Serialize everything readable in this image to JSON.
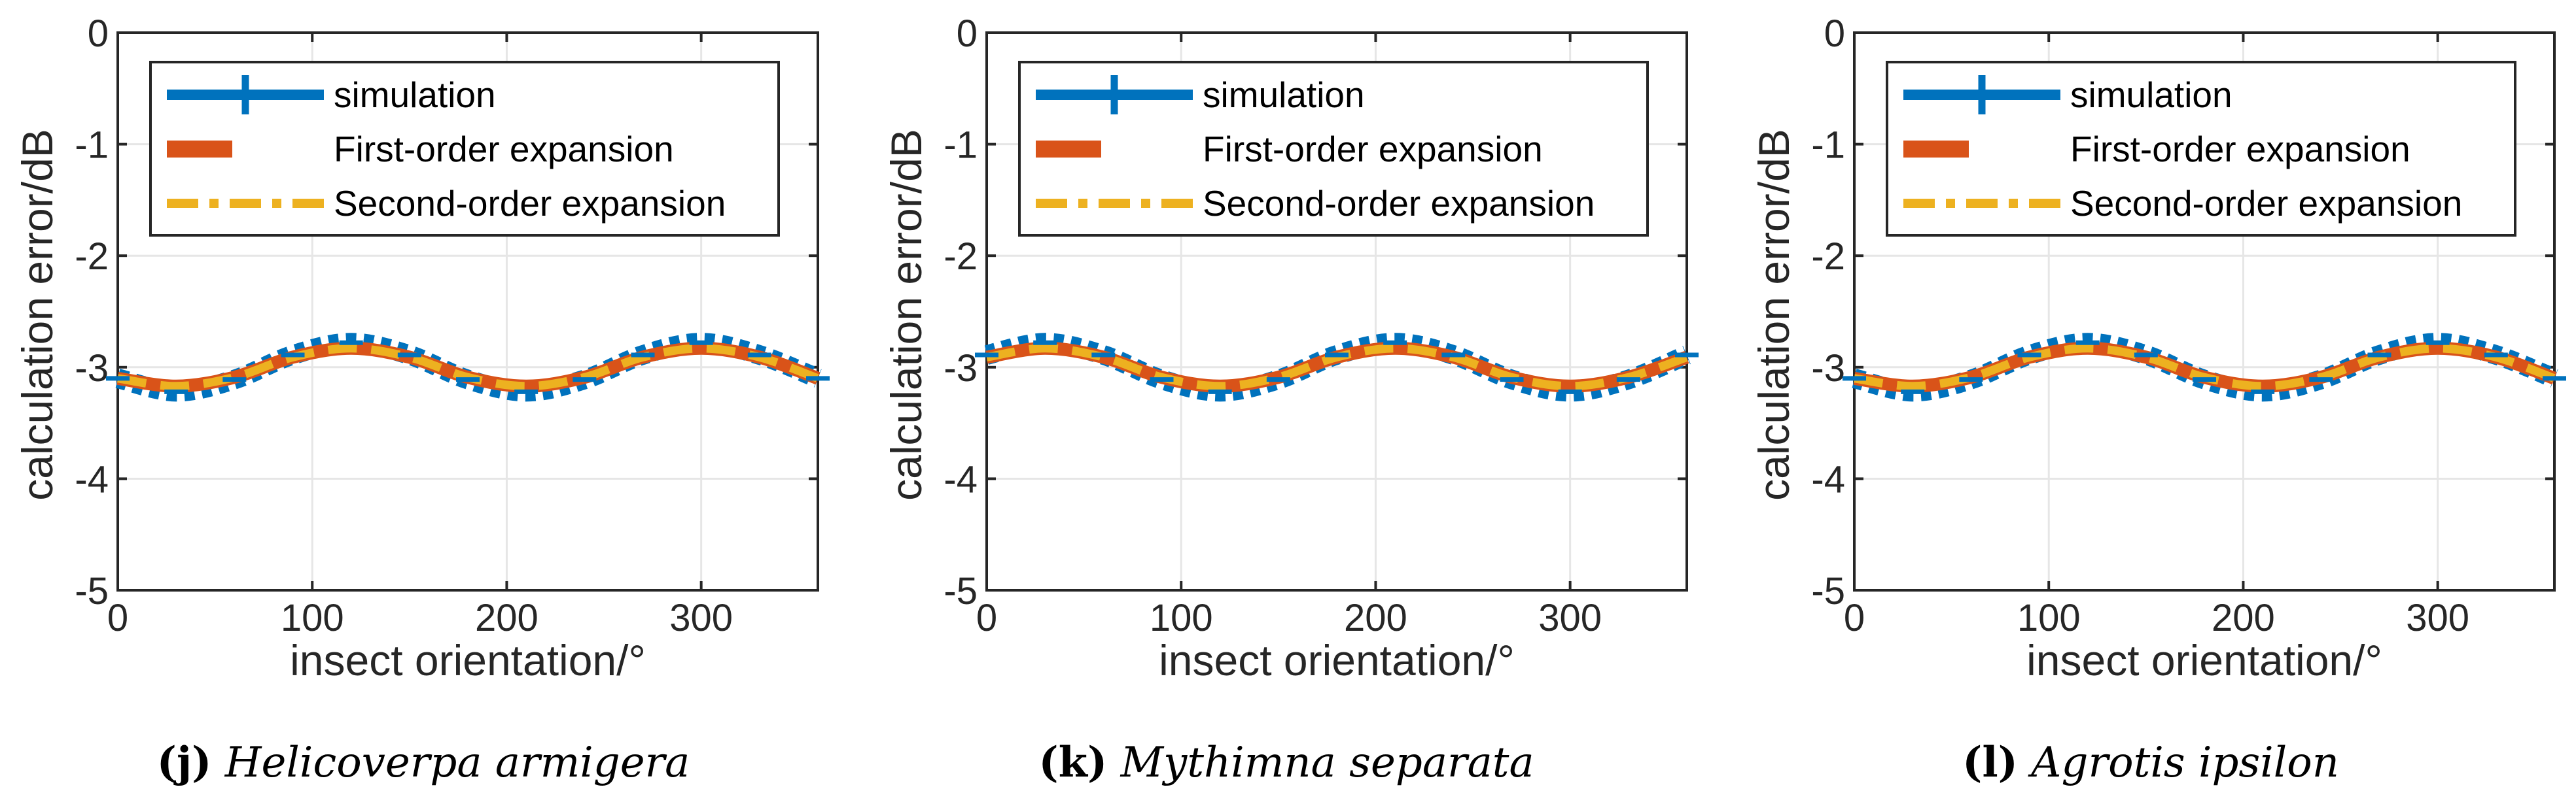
{
  "legend_labels": {
    "simulation": "simulation",
    "first": "First-order expansion",
    "second": "Second-order expansion"
  },
  "colors": {
    "simulation": "#0072BD",
    "first": "#D95319",
    "second": "#EDB120",
    "axis": "#262626",
    "grid": "#e6e6e6"
  },
  "captions": [
    {
      "letter": "(j)",
      "name": "Helicoverpa armigera"
    },
    {
      "letter": "(k)",
      "name": "Mythimna separata"
    },
    {
      "letter": "(l)",
      "name": "Agrotis ipsilon"
    }
  ],
  "chart_data": [
    {
      "type": "line",
      "xlabel": "insect orientation/°",
      "ylabel": "calculation error/dB",
      "xlim": [
        0,
        360
      ],
      "ylim": [
        -5,
        0
      ],
      "xticks": [
        0,
        100,
        200,
        300
      ],
      "yticks": [
        0,
        -1,
        -2,
        -3,
        -4,
        -5
      ],
      "x": [
        0,
        30,
        60,
        90,
        120,
        150,
        180,
        210,
        240,
        270,
        300,
        330,
        360
      ],
      "series": [
        {
          "name": "simulation",
          "values": [
            -3.1,
            -3.22,
            -3.11,
            -2.89,
            -2.78,
            -2.89,
            -3.11,
            -3.22,
            -3.11,
            -2.89,
            -2.78,
            -2.89,
            -3.1
          ]
        },
        {
          "name": "First-order expansion",
          "values": [
            -3.1,
            -3.17,
            -3.09,
            -2.91,
            -2.83,
            -2.91,
            -3.09,
            -3.17,
            -3.09,
            -2.91,
            -2.83,
            -2.91,
            -3.1
          ]
        },
        {
          "name": "Second-order expansion",
          "values": [
            -3.1,
            -3.17,
            -3.09,
            -2.91,
            -2.83,
            -2.91,
            -3.09,
            -3.17,
            -3.09,
            -2.91,
            -2.83,
            -2.91,
            -3.1
          ]
        }
      ],
      "legend": "top"
    },
    {
      "type": "line",
      "xlabel": "insect orientation/°",
      "ylabel": "calculation error/dB",
      "xlim": [
        0,
        360
      ],
      "ylim": [
        -5,
        0
      ],
      "xticks": [
        0,
        100,
        200,
        300
      ],
      "yticks": [
        0,
        -1,
        -2,
        -3,
        -4,
        -5
      ],
      "x": [
        0,
        30,
        60,
        90,
        120,
        150,
        180,
        210,
        240,
        270,
        300,
        330,
        360
      ],
      "series": [
        {
          "name": "simulation",
          "values": [
            -2.89,
            -2.78,
            -2.89,
            -3.11,
            -3.22,
            -3.11,
            -2.89,
            -2.78,
            -2.89,
            -3.11,
            -3.22,
            -3.11,
            -2.89
          ]
        },
        {
          "name": "First-order expansion",
          "values": [
            -2.91,
            -2.83,
            -2.91,
            -3.09,
            -3.17,
            -3.09,
            -2.91,
            -2.83,
            -2.91,
            -3.09,
            -3.17,
            -3.09,
            -2.91
          ]
        },
        {
          "name": "Second-order expansion",
          "values": [
            -2.91,
            -2.83,
            -2.91,
            -3.09,
            -3.17,
            -3.09,
            -2.91,
            -2.83,
            -2.91,
            -3.09,
            -3.17,
            -3.09,
            -2.91
          ]
        }
      ],
      "legend": "top"
    },
    {
      "type": "line",
      "xlabel": "insect orientation/°",
      "ylabel": "calculation error/dB",
      "xlim": [
        0,
        360
      ],
      "ylim": [
        -5,
        0
      ],
      "xticks": [
        0,
        100,
        200,
        300
      ],
      "yticks": [
        0,
        -1,
        -2,
        -3,
        -4,
        -5
      ],
      "x": [
        0,
        30,
        60,
        90,
        120,
        150,
        180,
        210,
        240,
        270,
        300,
        330,
        360
      ],
      "series": [
        {
          "name": "simulation",
          "values": [
            -3.1,
            -3.22,
            -3.11,
            -2.89,
            -2.78,
            -2.89,
            -3.11,
            -3.22,
            -3.11,
            -2.89,
            -2.78,
            -2.89,
            -3.1
          ]
        },
        {
          "name": "First-order expansion",
          "values": [
            -3.1,
            -3.17,
            -3.09,
            -2.91,
            -2.83,
            -2.91,
            -3.09,
            -3.17,
            -3.09,
            -2.91,
            -2.83,
            -2.91,
            -3.1
          ]
        },
        {
          "name": "Second-order expansion",
          "values": [
            -3.1,
            -3.17,
            -3.09,
            -2.91,
            -2.83,
            -2.91,
            -3.09,
            -3.17,
            -3.09,
            -2.91,
            -2.83,
            -2.91,
            -3.1
          ]
        }
      ],
      "legend": "top"
    }
  ]
}
